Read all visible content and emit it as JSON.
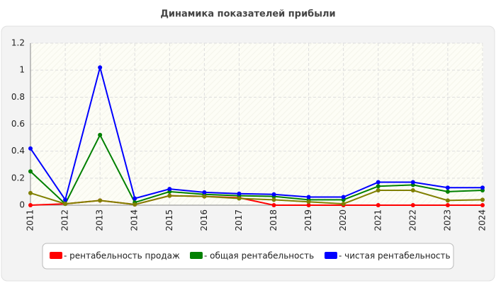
{
  "chart_data": {
    "type": "line",
    "title": "Динамика показателей прибыли",
    "categories": [
      "2011",
      "2012",
      "2013",
      "2014",
      "2015",
      "2016",
      "2017",
      "2018",
      "2019",
      "2020",
      "2021",
      "2022",
      "2023",
      "2024"
    ],
    "ylim": [
      0,
      1.2
    ],
    "yticks": [
      0,
      0.2,
      0.4,
      0.6,
      0.8,
      1,
      1.2
    ],
    "grid": true,
    "series": [
      {
        "name": "- рентабельность продаж",
        "color": "#ff0000",
        "values": [
          0,
          0.01,
          0.035,
          0.005,
          0.07,
          0.065,
          0.055,
          0,
          0,
          0,
          0,
          0,
          0,
          0
        ]
      },
      {
        "name": "- общая рентабельность",
        "color": "#008000",
        "values": [
          0.25,
          0.01,
          0.52,
          0.02,
          0.1,
          0.08,
          0.07,
          0.065,
          0.04,
          0.04,
          0.14,
          0.15,
          0.1,
          0.11
        ]
      },
      {
        "name": "- чистая рентабельность",
        "color": "#0000ff",
        "values": [
          0.42,
          0.04,
          1.02,
          0.05,
          0.12,
          0.095,
          0.085,
          0.08,
          0.06,
          0.06,
          0.17,
          0.17,
          0.13,
          0.13
        ]
      },
      {
        "color": "#808000",
        "values": [
          0.09,
          0.01,
          0.035,
          0.005,
          0.07,
          0.065,
          0.05,
          0.04,
          0.025,
          0.01,
          0.11,
          0.11,
          0.035,
          0.04
        ]
      }
    ]
  }
}
